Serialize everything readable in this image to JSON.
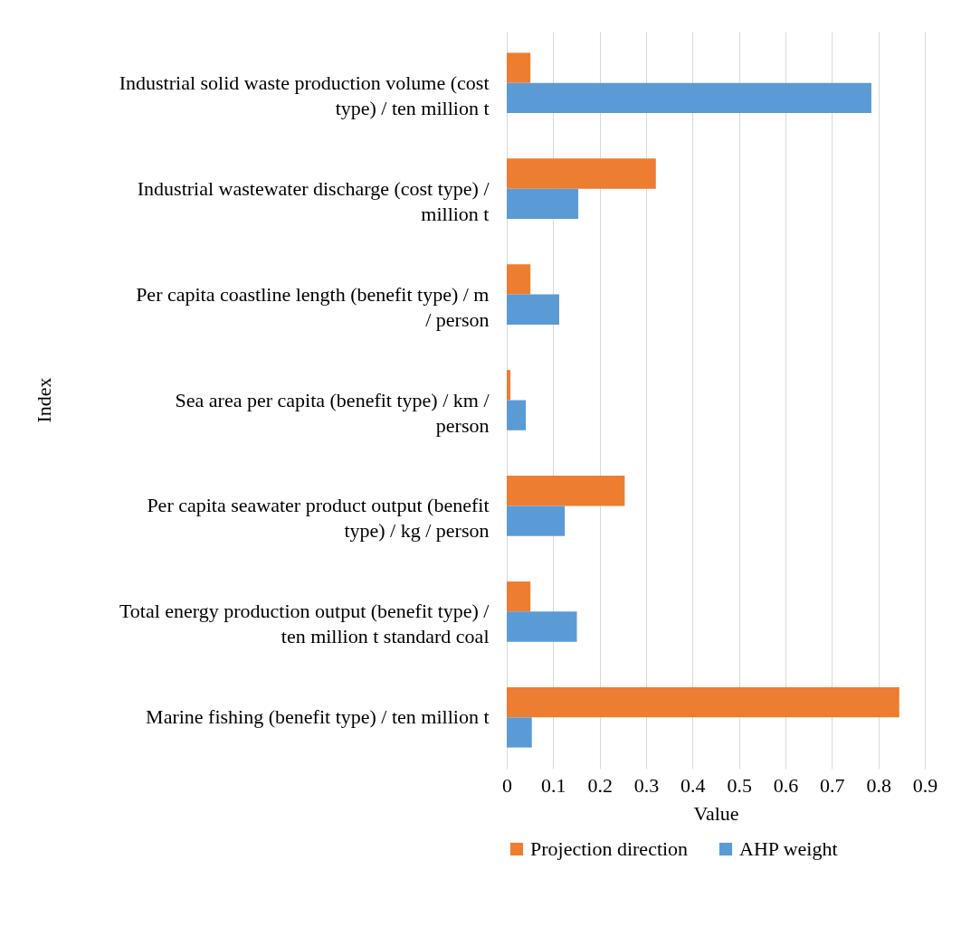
{
  "chart_data": {
    "type": "bar",
    "orientation": "horizontal",
    "xlabel": "Value",
    "ylabel": "Index",
    "categories": [
      "Industrial solid waste production volume (cost type) / ten million t",
      "Industrial wastewater discharge (cost type) / million t",
      "Per capita coastline length (benefit type) / m / person",
      "Sea area per capita (benefit type) / km / person",
      "Per capita seawater product output (benefit type) / kg / person",
      "Total energy production output (benefit type) / ten million t standard coal",
      "Marine fishing (benefit type) / ten million t"
    ],
    "series": [
      {
        "name": "Projection direction",
        "color": "#ed7d31",
        "values": [
          0.051,
          0.321,
          0.051,
          0.008,
          0.254,
          0.051,
          0.845
        ]
      },
      {
        "name": "AHP weight",
        "color": "#5b9bd5",
        "values": [
          0.785,
          0.154,
          0.113,
          0.041,
          0.125,
          0.151,
          0.054
        ]
      }
    ],
    "xlim": [
      0,
      0.9
    ],
    "xticks": [
      0,
      0.1,
      0.2,
      0.3,
      0.4,
      0.5,
      0.6,
      0.7,
      0.8,
      0.9
    ],
    "grid": "x",
    "legend": "bottom"
  }
}
